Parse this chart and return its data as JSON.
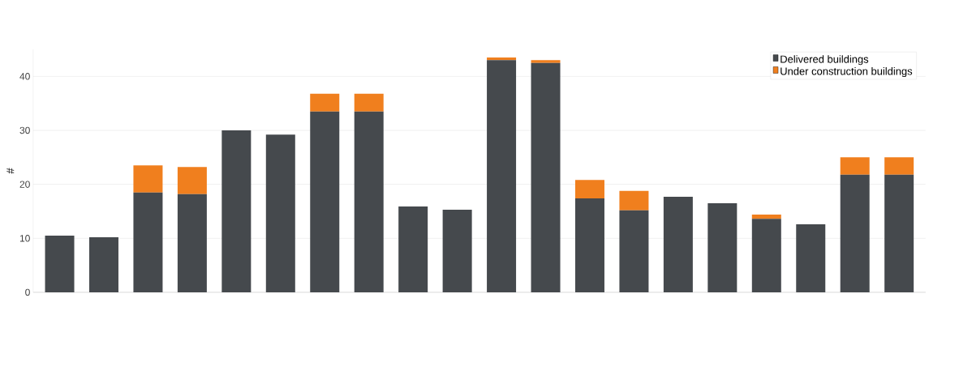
{
  "chart_data": {
    "type": "bar",
    "stacked": true,
    "ylabel": "#",
    "categories": [
      null,
      null,
      null,
      null,
      null,
      null,
      null,
      null,
      null,
      null,
      null,
      null,
      null,
      null,
      null,
      null,
      null,
      null,
      null,
      null
    ],
    "series": [
      {
        "name": "Delivered buildings",
        "color": "#45494d",
        "values": [
          10.5,
          10.2,
          18.5,
          18.2,
          30,
          29.2,
          33.5,
          33.5,
          15.9,
          15.3,
          43,
          42.5,
          17.4,
          15.2,
          17.7,
          16.5,
          13.6,
          12.6,
          21.8,
          21.8
        ]
      },
      {
        "name": "Under construction buildings",
        "color": "#f07f1e",
        "values": [
          0,
          0,
          5,
          5,
          0,
          0,
          3.3,
          3.3,
          0,
          0,
          0.5,
          0.5,
          3.4,
          3.6,
          0,
          0,
          0.8,
          0,
          3.2,
          3.2
        ]
      }
    ],
    "ylim": [
      0,
      45
    ],
    "yticks": [
      0,
      10,
      20,
      30,
      40
    ],
    "grid": "y",
    "legend": "top right"
  }
}
